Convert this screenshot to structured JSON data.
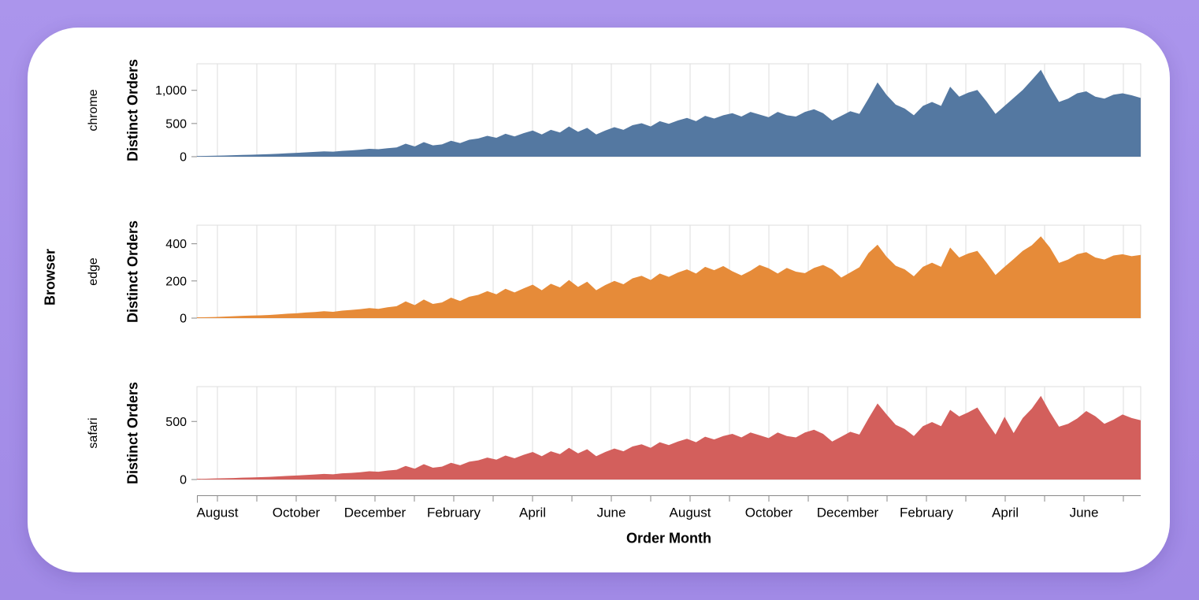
{
  "page": {
    "background_color": "#a18ae6",
    "card_color": "#ffffff"
  },
  "chart_data": {
    "type": "area",
    "title": "",
    "facet_field_label": "Browser",
    "xlabel": "Order Month",
    "ylabel": "Distinct Orders",
    "x_unit": "weekly order totals, two years (mid-July year 1 to mid-July year 3)",
    "x_tick_labels": [
      "August",
      "October",
      "December",
      "February",
      "April",
      "June",
      "August",
      "October",
      "December",
      "February",
      "April",
      "June"
    ],
    "grid": true,
    "legend": "none (faceted rows by Browser)",
    "series": [
      {
        "name": "chrome",
        "color": "#5478a1",
        "y_domain": [
          0,
          1400
        ],
        "y_ticks": [
          {
            "value": 0,
            "label": "0"
          },
          {
            "value": 500,
            "label": "500"
          },
          {
            "value": 1000,
            "label": "1,000"
          }
        ],
        "values": [
          10,
          12,
          15,
          18,
          22,
          26,
          30,
          34,
          38,
          45,
          52,
          58,
          65,
          72,
          80,
          75,
          88,
          95,
          105,
          118,
          112,
          128,
          140,
          195,
          155,
          220,
          170,
          185,
          240,
          205,
          255,
          275,
          315,
          285,
          345,
          305,
          355,
          395,
          335,
          405,
          365,
          455,
          375,
          435,
          335,
          395,
          445,
          405,
          475,
          505,
          455,
          535,
          495,
          545,
          585,
          535,
          615,
          575,
          625,
          655,
          605,
          675,
          635,
          595,
          675,
          625,
          605,
          675,
          715,
          655,
          545,
          615,
          685,
          645,
          875,
          1120,
          930,
          785,
          725,
          625,
          765,
          825,
          765,
          1055,
          905,
          965,
          1005,
          835,
          645,
          765,
          885,
          1005,
          1155,
          1310,
          1055,
          825,
          875,
          955,
          985,
          905,
          875,
          935,
          955,
          925,
          885
        ]
      },
      {
        "name": "edge",
        "color": "#e68b39",
        "y_domain": [
          0,
          500
        ],
        "y_ticks": [
          {
            "value": 0,
            "label": "0"
          },
          {
            "value": 200,
            "label": "200"
          },
          {
            "value": 400,
            "label": "400"
          }
        ],
        "values": [
          4,
          5,
          6,
          8,
          10,
          12,
          14,
          15,
          17,
          20,
          24,
          26,
          30,
          33,
          37,
          34,
          40,
          44,
          48,
          54,
          50,
          58,
          64,
          90,
          70,
          100,
          76,
          84,
          110,
          92,
          115,
          125,
          145,
          128,
          158,
          138,
          160,
          180,
          150,
          185,
          165,
          205,
          168,
          196,
          150,
          178,
          200,
          182,
          214,
          228,
          205,
          240,
          222,
          245,
          262,
          240,
          276,
          258,
          280,
          252,
          230,
          255,
          286,
          268,
          240,
          270,
          250,
          242,
          270,
          286,
          262,
          218,
          246,
          274,
          350,
          395,
          330,
          282,
          262,
          225,
          276,
          298,
          276,
          380,
          326,
          348,
          362,
          300,
          232,
          276,
          318,
          362,
          392,
          440,
          380,
          297,
          315,
          344,
          355,
          326,
          315,
          337,
          344,
          333,
          340
        ]
      },
      {
        "name": "safari",
        "color": "#d35f5c",
        "y_domain": [
          0,
          800
        ],
        "y_ticks": [
          {
            "value": 0,
            "label": "0"
          },
          {
            "value": 500,
            "label": "500"
          }
        ],
        "values": [
          6,
          7,
          9,
          11,
          13,
          16,
          18,
          20,
          23,
          27,
          31,
          35,
          39,
          43,
          48,
          45,
          53,
          57,
          63,
          71,
          67,
          77,
          84,
          117,
          93,
          132,
          102,
          111,
          144,
          123,
          153,
          165,
          189,
          171,
          207,
          183,
          213,
          237,
          201,
          243,
          219,
          273,
          225,
          261,
          201,
          237,
          267,
          243,
          285,
          303,
          273,
          321,
          297,
          327,
          351,
          321,
          369,
          345,
          375,
          393,
          363,
          405,
          381,
          357,
          405,
          375,
          363,
          405,
          429,
          393,
          327,
          369,
          411,
          387,
          525,
          655,
          560,
          471,
          435,
          375,
          459,
          495,
          459,
          600,
          543,
          579,
          620,
          501,
          387,
          540,
          400,
          530,
          610,
          720,
          580,
          455,
          480,
          525,
          590,
          545,
          480,
          515,
          560,
          530,
          510
        ]
      }
    ]
  }
}
